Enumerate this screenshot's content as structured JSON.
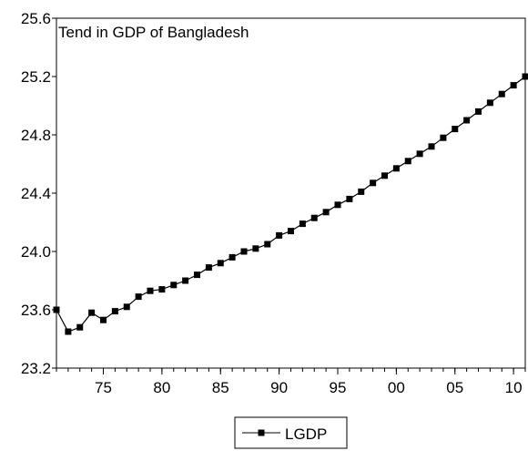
{
  "chart_data": {
    "type": "line",
    "title": "Tend in GDP of Bangladesh",
    "xlabel": "",
    "ylabel": "",
    "xlim": [
      1971,
      2011
    ],
    "ylim": [
      23.2,
      25.6
    ],
    "y_ticks": [
      {
        "value": 23.2,
        "label": "23.2"
      },
      {
        "value": 23.6,
        "label": "23.6"
      },
      {
        "value": 24.0,
        "label": "24.0"
      },
      {
        "value": 24.4,
        "label": "24.4"
      },
      {
        "value": 24.8,
        "label": "24.8"
      },
      {
        "value": 25.2,
        "label": "25.2"
      },
      {
        "value": 25.6,
        "label": "25.6"
      }
    ],
    "x_ticks": [
      {
        "value": 1975,
        "label": "75"
      },
      {
        "value": 1980,
        "label": "80"
      },
      {
        "value": 1985,
        "label": "85"
      },
      {
        "value": 1990,
        "label": "90"
      },
      {
        "value": 1995,
        "label": "95"
      },
      {
        "value": 2000,
        "label": "00"
      },
      {
        "value": 2005,
        "label": "05"
      },
      {
        "value": 2010,
        "label": "10"
      }
    ],
    "grid": false,
    "legend_position": "bottom-center",
    "series": [
      {
        "name": "LGDP",
        "color": "#000000",
        "marker": "square",
        "x": [
          1971,
          1972,
          1973,
          1974,
          1975,
          1976,
          1977,
          1978,
          1979,
          1980,
          1981,
          1982,
          1983,
          1984,
          1985,
          1986,
          1987,
          1988,
          1989,
          1990,
          1991,
          1992,
          1993,
          1994,
          1995,
          1996,
          1997,
          1998,
          1999,
          2000,
          2001,
          2002,
          2003,
          2004,
          2005,
          2006,
          2007,
          2008,
          2009,
          2010,
          2011
        ],
        "values": [
          23.6,
          23.45,
          23.48,
          23.58,
          23.53,
          23.59,
          23.62,
          23.69,
          23.73,
          23.74,
          23.77,
          23.8,
          23.84,
          23.89,
          23.92,
          23.96,
          24.0,
          24.02,
          24.05,
          24.11,
          24.14,
          24.19,
          24.23,
          24.27,
          24.32,
          24.36,
          24.41,
          24.47,
          24.52,
          24.57,
          24.62,
          24.67,
          24.72,
          24.78,
          24.84,
          24.9,
          24.96,
          25.02,
          25.08,
          25.14,
          25.2
        ]
      }
    ]
  }
}
